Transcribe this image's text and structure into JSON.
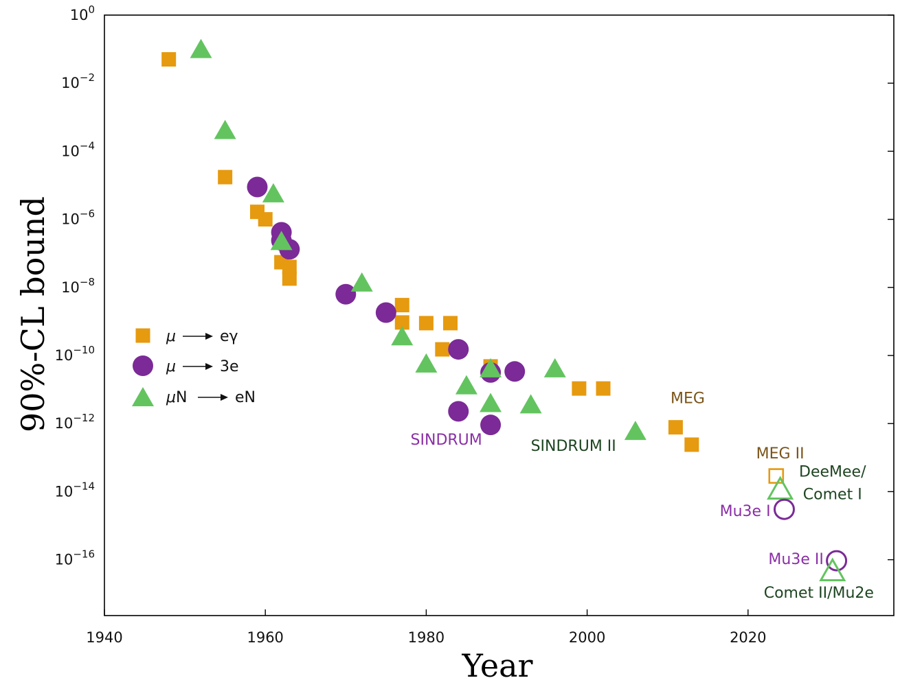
{
  "chart_data": {
    "type": "scatter",
    "title": "",
    "xlabel": "Year",
    "ylabel": "90%-CL bound",
    "xlim": [
      1940,
      2035
    ],
    "ylim_log10": [
      -17.6,
      0
    ],
    "y_scale": "log",
    "grid": false,
    "legend_position": "left-middle",
    "x_ticks": [
      {
        "value": 1940,
        "label": "1940"
      },
      {
        "value": 1960,
        "label": "1960"
      },
      {
        "value": 1980,
        "label": "1980"
      },
      {
        "value": 2000,
        "label": "2000"
      },
      {
        "value": 2020,
        "label": "2020"
      }
    ],
    "y_ticks": [
      {
        "exp": 0,
        "base": "10",
        "sup": "0"
      },
      {
        "exp": -2,
        "base": "10",
        "sup": "−2"
      },
      {
        "exp": -4,
        "base": "10",
        "sup": "−4"
      },
      {
        "exp": -6,
        "base": "10",
        "sup": "−6"
      },
      {
        "exp": -8,
        "base": "10",
        "sup": "−8"
      },
      {
        "exp": -10,
        "base": "10",
        "sup": "−10"
      },
      {
        "exp": -12,
        "base": "10",
        "sup": "−12"
      },
      {
        "exp": -14,
        "base": "10",
        "sup": "−14"
      },
      {
        "exp": -16,
        "base": "10",
        "sup": "−16"
      }
    ],
    "colors": {
      "meg": "#e69a0f",
      "mu3e": "#7b2a97",
      "mue": "#63c45f",
      "label_meg": "#7a5418",
      "label_mu3e": "#8a2fa6",
      "label_mue": "#1d4420"
    },
    "series": [
      {
        "name": "μ ⟶ eγ",
        "marker": "square",
        "color": "#e69a0f",
        "points": [
          {
            "x": 1948,
            "y": -1.3
          },
          {
            "x": 1955,
            "y": -4.76
          },
          {
            "x": 1959,
            "y": -5.78
          },
          {
            "x": 1960,
            "y": -6.0
          },
          {
            "x": 1962,
            "y": -7.26
          },
          {
            "x": 1963,
            "y": -7.4
          },
          {
            "x": 1963,
            "y": -7.74
          },
          {
            "x": 1977,
            "y": -8.52
          },
          {
            "x": 1977,
            "y": -9.03
          },
          {
            "x": 1980,
            "y": -9.05
          },
          {
            "x": 1983,
            "y": -9.05
          },
          {
            "x": 1982,
            "y": -9.82
          },
          {
            "x": 1988,
            "y": -10.32
          },
          {
            "x": 1999,
            "y": -10.97
          },
          {
            "x": 2002,
            "y": -10.97
          },
          {
            "x": 2011,
            "y": -12.11
          },
          {
            "x": 2013,
            "y": -12.62
          }
        ]
      },
      {
        "name": "μ ⟶ 3e",
        "marker": "circle",
        "color": "#7b2a97",
        "points": [
          {
            "x": 1959,
            "y": -5.05
          },
          {
            "x": 1962,
            "y": -6.38
          },
          {
            "x": 1962,
            "y": -6.62
          },
          {
            "x": 1963,
            "y": -6.88
          },
          {
            "x": 1970,
            "y": -8.2
          },
          {
            "x": 1975,
            "y": -8.74
          },
          {
            "x": 1984,
            "y": -9.82
          },
          {
            "x": 1984,
            "y": -11.64
          },
          {
            "x": 1988,
            "y": -10.5
          },
          {
            "x": 1991,
            "y": -10.47
          },
          {
            "x": 1988,
            "y": -12.04
          }
        ]
      },
      {
        "name": "μN ⟶ eN",
        "marker": "triangle",
        "color": "#63c45f",
        "points": [
          {
            "x": 1952,
            "y": -0.98
          },
          {
            "x": 1955,
            "y": -3.36
          },
          {
            "x": 1961,
            "y": -5.22
          },
          {
            "x": 1962,
            "y": -6.62
          },
          {
            "x": 1972,
            "y": -7.84
          },
          {
            "x": 1977,
            "y": -9.42
          },
          {
            "x": 1980,
            "y": -10.22
          },
          {
            "x": 1985,
            "y": -10.86
          },
          {
            "x": 1988,
            "y": -10.36
          },
          {
            "x": 1988,
            "y": -11.38
          },
          {
            "x": 1993,
            "y": -11.42
          },
          {
            "x": 1996,
            "y": -10.36
          },
          {
            "x": 2006,
            "y": -12.2
          }
        ]
      }
    ],
    "projections": [
      {
        "marker": "square",
        "x": 2023.5,
        "y": -13.54,
        "color": "#e69a0f"
      },
      {
        "marker": "triangle",
        "x": 2024,
        "y": -13.9,
        "color": "#63c45f"
      },
      {
        "marker": "circle",
        "x": 2024.5,
        "y": -14.52,
        "color": "#7b2a97"
      },
      {
        "marker": "circle",
        "x": 2031,
        "y": -16.03,
        "color": "#7b2a97"
      },
      {
        "marker": "triangle",
        "x": 2030.5,
        "y": -16.3,
        "color": "#63c45f"
      }
    ],
    "annotations": [
      {
        "text": "MEG",
        "x": 2012.5,
        "y": -11.4,
        "color": "#7a5418",
        "anchor": "middle"
      },
      {
        "text": "SINDRUM",
        "x": 1982.5,
        "y": -12.62,
        "color": "#8a2fa6",
        "anchor": "middle"
      },
      {
        "text": "SINDRUM II",
        "x": 1998.3,
        "y": -12.8,
        "color": "#1d4420",
        "anchor": "middle"
      },
      {
        "text": "MEG II",
        "x": 2024,
        "y": -13.02,
        "color": "#7a5418",
        "anchor": "middle"
      },
      {
        "text": "DeeMee/",
        "x": 2030.5,
        "y": -13.56,
        "color": "#1d4420",
        "anchor": "middle"
      },
      {
        "text": "Comet I",
        "x": 2030.5,
        "y": -14.22,
        "color": "#1d4420",
        "anchor": "middle"
      },
      {
        "text": "Mu3e I",
        "x": 2022.8,
        "y": -14.72,
        "color": "#8a2fa6",
        "anchor": "end"
      },
      {
        "text": "Mu3e II",
        "x": 2029.4,
        "y": -16.13,
        "color": "#8a2fa6",
        "anchor": "end"
      },
      {
        "text": "Comet II/Mu2e",
        "x": 2028.8,
        "y": -17.12,
        "color": "#1d4420",
        "anchor": "middle"
      }
    ]
  }
}
